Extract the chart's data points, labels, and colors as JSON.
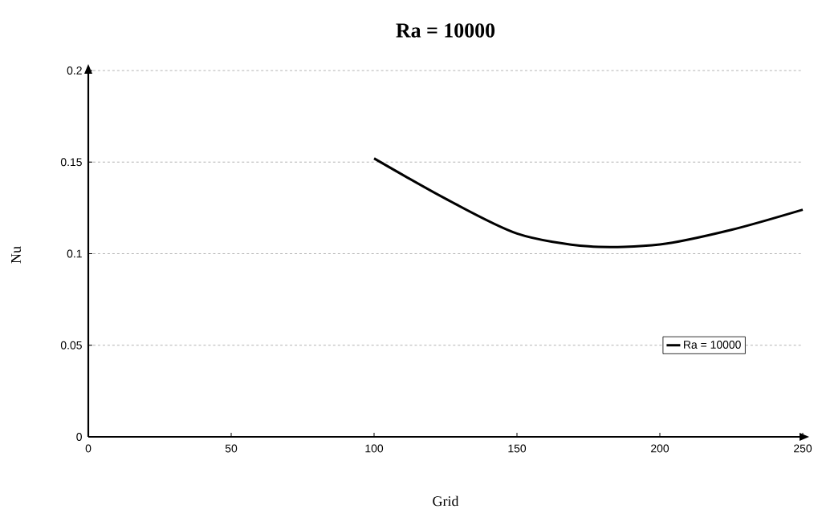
{
  "chart_data": {
    "type": "line",
    "title": "Ra = 10000",
    "xlabel": "Grid",
    "ylabel": "Nu",
    "x": [
      100,
      125,
      150,
      175,
      200,
      225,
      250
    ],
    "series": [
      {
        "name": "Ra = 10000",
        "color": "#000000",
        "values": [
          0.152,
          0.13,
          0.111,
          0.104,
          0.105,
          0.113,
          0.124
        ]
      }
    ],
    "xlim": [
      0,
      250
    ],
    "xticks": [
      0,
      50,
      100,
      150,
      200,
      250
    ],
    "ylim": [
      0,
      0.2
    ],
    "yticks": [
      0,
      0.05,
      0.1,
      0.15,
      0.2
    ],
    "grid": "y",
    "legend": "bottom right",
    "marker": "none",
    "line_style": "solid"
  }
}
